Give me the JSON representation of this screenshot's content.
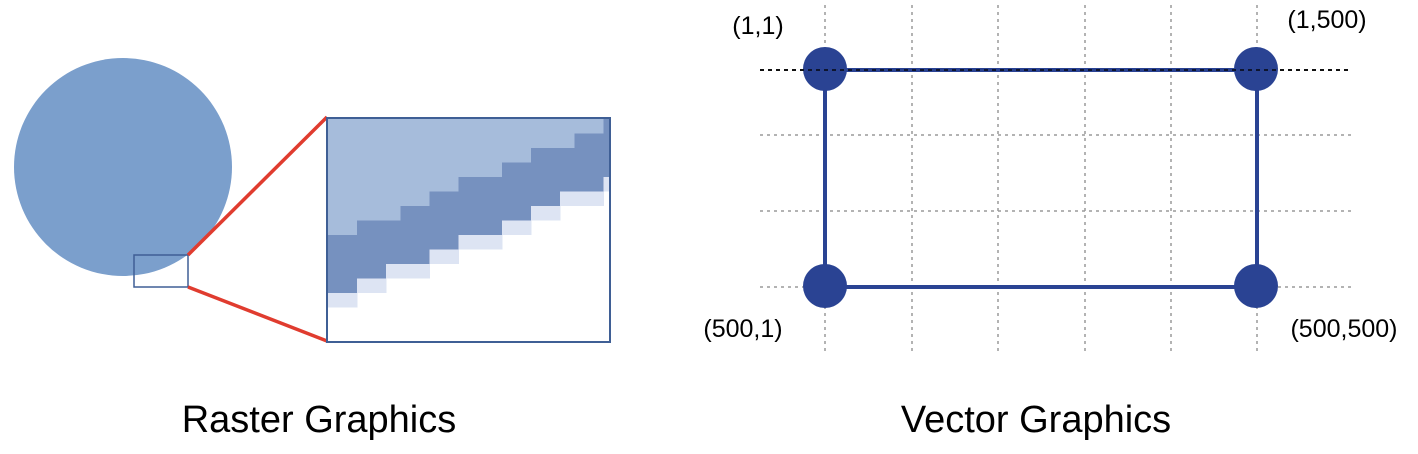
{
  "raster": {
    "caption": "Raster Graphics"
  },
  "vector": {
    "caption": "Vector Graphics",
    "corners": {
      "top_left": "(1,1)",
      "top_right": "(1,500)",
      "bottom_left": "(500,1)",
      "bottom_right": "(500,500)"
    }
  },
  "colors": {
    "circle_fill": "#7b9fcc",
    "zoom_light": "#a6bcdb",
    "zoom_dark": "#7691bf",
    "zoom_edge": "#dde4f3",
    "frame": "#3f5f95",
    "connector": "#e03c2f",
    "vector_blue": "#2a4393",
    "grid": "#9a9a9a"
  }
}
